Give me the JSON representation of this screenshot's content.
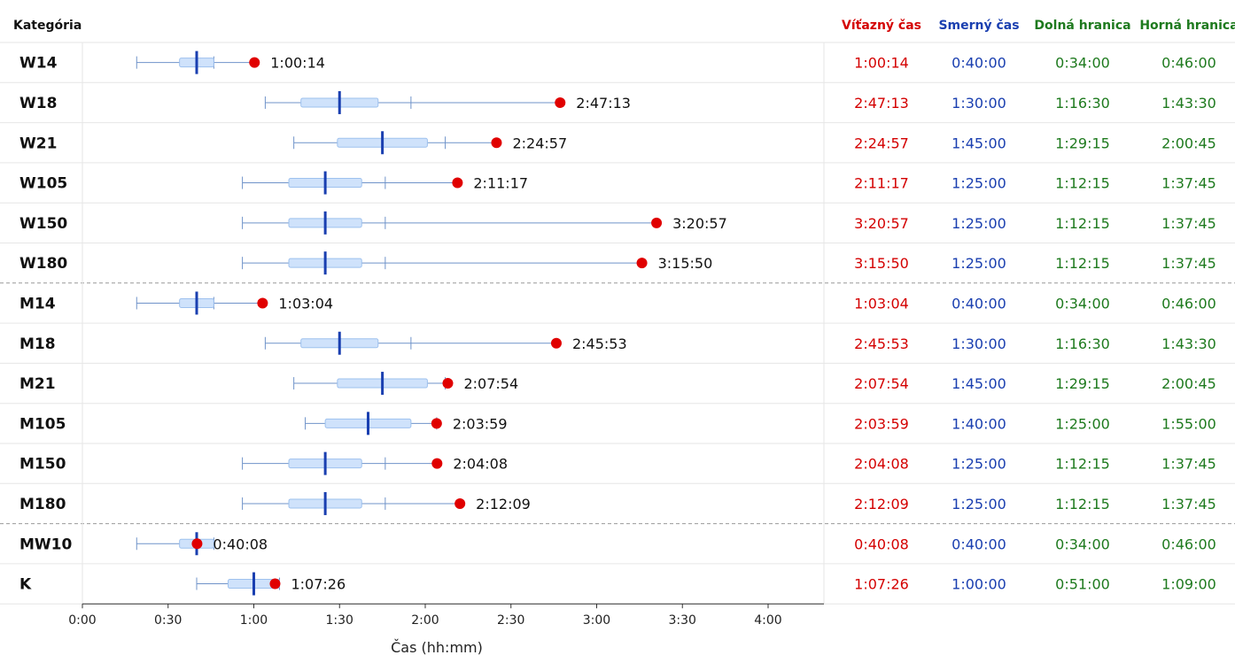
{
  "chart_data": {
    "type": "table",
    "category_header": "Kategória",
    "columns": [
      {
        "label": "Víťazný čas",
        "color": "#d40000"
      },
      {
        "label": "Smerný čas",
        "color": "#1a3fb0"
      },
      {
        "label": "Dolná hranica",
        "color": "#1e7a1e"
      },
      {
        "label": "Horná hranica",
        "color": "#1e7a1e"
      }
    ],
    "xlabel": "Čas (hh:mm)",
    "x_ticks": [
      "0:00",
      "0:30",
      "1:00",
      "1:30",
      "2:00",
      "2:30",
      "3:00",
      "3:30",
      "4:00"
    ],
    "xlim_minutes": [
      0,
      260
    ],
    "group_separators_after": [
      "W180",
      "M180"
    ],
    "rows": [
      {
        "category": "W14",
        "winner": "1:00:14",
        "target": "0:40:00",
        "lower": "0:34:00",
        "upper": "0:46:00",
        "winner_label": "1:00:14",
        "whisker": [
          "0:19:00",
          "0:46:00"
        ]
      },
      {
        "category": "W18",
        "winner": "2:47:13",
        "target": "1:30:00",
        "lower": "1:16:30",
        "upper": "1:43:30",
        "winner_label": "2:47:13",
        "whisker": [
          "1:04:00",
          "1:55:00"
        ]
      },
      {
        "category": "W21",
        "winner": "2:24:57",
        "target": "1:45:00",
        "lower": "1:29:15",
        "upper": "2:00:45",
        "winner_label": "2:24:57",
        "whisker": [
          "1:14:00",
          "2:07:00"
        ]
      },
      {
        "category": "W105",
        "winner": "2:11:17",
        "target": "1:25:00",
        "lower": "1:12:15",
        "upper": "1:37:45",
        "winner_label": "2:11:17",
        "whisker": [
          "0:56:00",
          "1:46:00"
        ]
      },
      {
        "category": "W150",
        "winner": "3:20:57",
        "target": "1:25:00",
        "lower": "1:12:15",
        "upper": "1:37:45",
        "winner_label": "3:20:57",
        "whisker": [
          "0:56:00",
          "1:46:00"
        ]
      },
      {
        "category": "W180",
        "winner": "3:15:50",
        "target": "1:25:00",
        "lower": "1:12:15",
        "upper": "1:37:45",
        "winner_label": "3:15:50",
        "whisker": [
          "0:56:00",
          "1:46:00"
        ]
      },
      {
        "category": "M14",
        "winner": "1:03:04",
        "target": "0:40:00",
        "lower": "0:34:00",
        "upper": "0:46:00",
        "winner_label": "1:03:04",
        "whisker": [
          "0:19:00",
          "0:46:00"
        ]
      },
      {
        "category": "M18",
        "winner": "2:45:53",
        "target": "1:30:00",
        "lower": "1:16:30",
        "upper": "1:43:30",
        "winner_label": "2:45:53",
        "whisker": [
          "1:04:00",
          "1:55:00"
        ]
      },
      {
        "category": "M21",
        "winner": "2:07:54",
        "target": "1:45:00",
        "lower": "1:29:15",
        "upper": "2:00:45",
        "winner_label": "2:07:54",
        "whisker": [
          "1:14:00",
          "2:07:00"
        ]
      },
      {
        "category": "M105",
        "winner": "2:03:59",
        "target": "1:40:00",
        "lower": "1:25:00",
        "upper": "1:55:00",
        "winner_label": "2:03:59",
        "whisker": [
          "1:18:00",
          "2:04:00"
        ]
      },
      {
        "category": "M150",
        "winner": "2:04:08",
        "target": "1:25:00",
        "lower": "1:12:15",
        "upper": "1:37:45",
        "winner_label": "2:04:08",
        "whisker": [
          "0:56:00",
          "1:46:00"
        ]
      },
      {
        "category": "M180",
        "winner": "2:12:09",
        "target": "1:25:00",
        "lower": "1:12:15",
        "upper": "1:37:45",
        "winner_label": "2:12:09",
        "whisker": [
          "0:56:00",
          "1:46:00"
        ]
      },
      {
        "category": "MW10",
        "winner": "0:40:08",
        "target": "0:40:00",
        "lower": "0:34:00",
        "upper": "0:46:00",
        "winner_label": "0:40:08",
        "whisker": [
          "0:19:00",
          "0:46:00"
        ]
      },
      {
        "category": "K",
        "winner": "1:07:26",
        "target": "1:00:00",
        "lower": "0:51:00",
        "upper": "1:09:00",
        "winner_label": "1:07:26",
        "whisker": [
          "0:40:00",
          "1:09:00"
        ]
      }
    ]
  }
}
